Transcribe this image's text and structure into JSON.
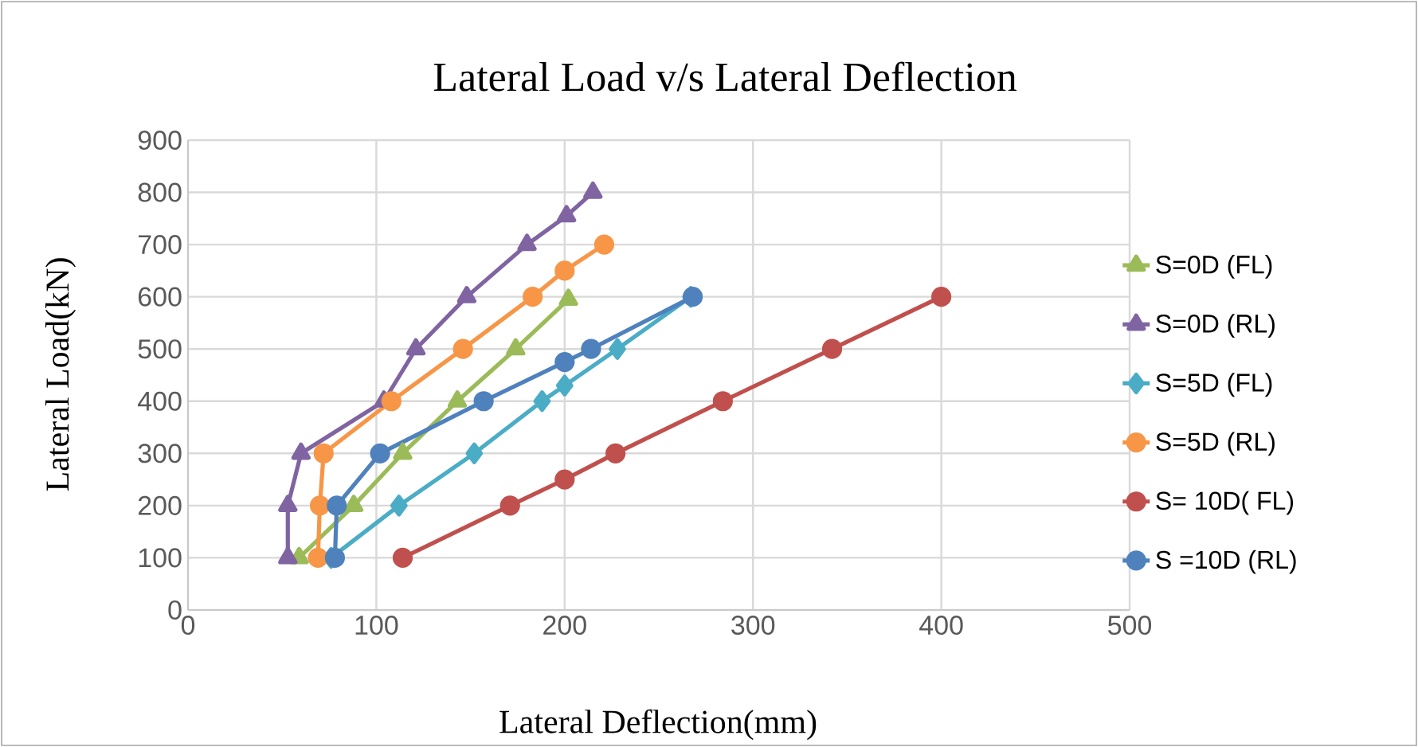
{
  "chart_data": {
    "type": "line",
    "title": "Lateral Load  v/s Lateral Deflection",
    "xlabel": "Lateral Deflection(mm)",
    "ylabel": "Lateral Load(kN)",
    "xlim": [
      0,
      500
    ],
    "ylim": [
      0,
      900
    ],
    "xticks": [
      0,
      100,
      200,
      300,
      400,
      500
    ],
    "yticks": [
      0,
      100,
      200,
      300,
      400,
      500,
      600,
      700,
      800,
      900
    ],
    "grid": true,
    "legend": "right",
    "series": [
      {
        "name": "S=0D (FL)",
        "color": "#9bbb59",
        "marker": "triangle",
        "x": [
          59,
          88,
          114,
          143,
          174,
          202
        ],
        "values": [
          100,
          200,
          300,
          400,
          500,
          595
        ]
      },
      {
        "name": "S=0D (RL)",
        "color": "#8064a2",
        "marker": "triangle",
        "x": [
          53,
          53,
          60,
          104,
          121,
          148,
          180,
          201,
          215
        ],
        "values": [
          100,
          200,
          300,
          400,
          500,
          600,
          700,
          755,
          800
        ]
      },
      {
        "name": "S=5D (FL)",
        "color": "#4bacc6",
        "marker": "diamond",
        "x": [
          76,
          112,
          152,
          188,
          200,
          228,
          267
        ],
        "values": [
          100,
          200,
          300,
          400,
          430,
          500,
          600
        ]
      },
      {
        "name": "S=5D (RL)",
        "color": "#f79646",
        "marker": "circle",
        "x": [
          69,
          70,
          72,
          108,
          146,
          183,
          200,
          221
        ],
        "values": [
          100,
          200,
          300,
          400,
          500,
          600,
          650,
          700
        ]
      },
      {
        "name": "S= 10D( FL)",
        "color": "#c0504d",
        "marker": "circle",
        "x": [
          114,
          171,
          200,
          227,
          284,
          342,
          400
        ],
        "values": [
          100,
          200,
          250,
          300,
          400,
          500,
          600
        ]
      },
      {
        "name": "S =10D (RL)",
        "color": "#4f81bd",
        "marker": "circle",
        "x": [
          78,
          79,
          102,
          157,
          200,
          214,
          268
        ],
        "values": [
          100,
          200,
          300,
          400,
          475,
          500,
          600
        ]
      }
    ]
  }
}
